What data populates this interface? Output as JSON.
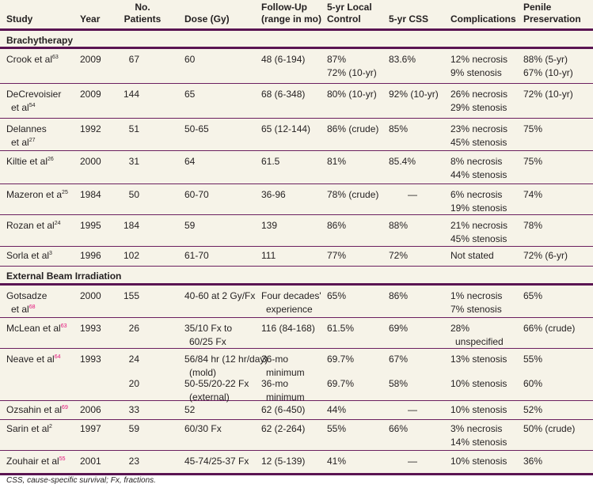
{
  "headers": {
    "study": "Study",
    "year": "Year",
    "patients_line1": "No.",
    "patients_line2": "Patients",
    "dose": "Dose (Gy)",
    "followup_line1": "Follow-Up",
    "followup_line2": "(range in mo)",
    "local_control_line1": "5-yr Local",
    "local_control_line2": "Control",
    "css": "5-yr CSS",
    "complications": "Complications",
    "penile_line1": "Penile",
    "penile_line2": "Preservation"
  },
  "sections": {
    "brachy": "Brachytherapy",
    "ebrt": "External Beam Irradiation"
  },
  "rows": [
    {
      "study1": "Crook et al",
      "ref": "63",
      "year": "2009",
      "patients": "67",
      "dose1": "60",
      "fu1": "48 (6-194)",
      "lc1": "87%",
      "lc2": "72% (10-yr)",
      "css": "83.6%",
      "comp1": "12% necrosis",
      "comp2": "9% stenosis",
      "pen1": "88% (5-yr)",
      "pen2": "67% (10-yr)"
    },
    {
      "study1": "DeCrevoisier",
      "study2": "et al",
      "ref": "54",
      "year": "2009",
      "patients": "144",
      "dose1": "65",
      "fu1": "68 (6-348)",
      "lc1": "80% (10-yr)",
      "css": "92% (10-yr)",
      "comp1": "26% necrosis",
      "comp2": "29% stenosis",
      "pen1": "72% (10-yr)"
    },
    {
      "study1": "Delannes",
      "study2": "et al",
      "ref": "27",
      "year": "1992",
      "patients": "51",
      "dose1": "50-65",
      "fu1": "65 (12-144)",
      "lc1": "86% (crude)",
      "css": "85%",
      "comp1": "23% necrosis",
      "comp2": "45% stenosis",
      "pen1": "75%"
    },
    {
      "study1": "Kiltie et al",
      "ref": "26",
      "year": "2000",
      "patients": "31",
      "dose1": "64",
      "fu1": "61.5",
      "lc1": "81%",
      "css": "85.4%",
      "comp1": "8% necrosis",
      "comp2": "44% stenosis",
      "pen1": "75%"
    },
    {
      "study1": "Mazeron et a",
      "ref": "25",
      "year": "1984",
      "patients": "50",
      "dose1": "60-70",
      "fu1": "36-96",
      "lc1": "78% (crude)",
      "css": "—",
      "comp1": "6% necrosis",
      "comp2": "19% stenosis",
      "pen1": "74%"
    },
    {
      "study1": "Rozan et al",
      "ref": "24",
      "year": "1995",
      "patients": "184",
      "dose1": "59",
      "fu1": "139",
      "lc1": "86%",
      "css": "88%",
      "comp1": "21% necrosis",
      "comp2": "45% stenosis",
      "pen1": "78%"
    },
    {
      "study1": "Sorla et al",
      "ref": "3",
      "year": "1996",
      "patients": "102",
      "dose1": "61-70",
      "fu1": "111",
      "lc1": "77%",
      "css": "72%",
      "comp1": "Not stated",
      "pen1": "72% (6-yr)"
    },
    {
      "study1": "Gotsadze",
      "study2": "et al",
      "ref": "68",
      "year": "2000",
      "patients": "155",
      "dose1": "40-60 at 2 Gy/Fx",
      "fu1": "Four decades'",
      "fu2": "experience",
      "lc1": "65%",
      "css": "86%",
      "comp1": "1% necrosis",
      "comp2": "7% stenosis",
      "pen1": "65%"
    },
    {
      "study1": "McLean et al",
      "ref": "63",
      "year": "1993",
      "patients": "26",
      "dose1": "35/10 Fx to",
      "dose2": "60/25 Fx",
      "fu1": "116 (84-168)",
      "lc1": "61.5%",
      "css": "69%",
      "comp1": "28%",
      "comp2": "unspecified",
      "pen1": "66% (crude)"
    },
    {
      "study1": "Neave et al",
      "ref": "64",
      "year": "1993",
      "patients": "24",
      "dose1": "56/84 hr (12 hr/day)",
      "dose2": "(mold)",
      "fu1": "36-mo",
      "fu2": "minimum",
      "lc1": "69.7%",
      "css": "67%",
      "comp1": "13% stenosis",
      "pen1": "55%",
      "sub": {
        "patients": "20",
        "dose1": "50-55/20-22 Fx",
        "dose2": "(external)",
        "fu1": "36-mo",
        "fu2": "minimum",
        "lc1": "69.7%",
        "css": "58%",
        "comp1": "10% stenosis",
        "pen1": "60%"
      }
    },
    {
      "study1": "Ozsahin et al",
      "ref": "69",
      "year": "2006",
      "patients": "33",
      "dose1": "52",
      "fu1": "62 (6-450)",
      "lc1": "44%",
      "css": "—",
      "comp1": "10% stenosis",
      "pen1": "52%"
    },
    {
      "study1": "Sarin et al",
      "ref": "2",
      "year": "1997",
      "patients": "59",
      "dose1": "60/30 Fx",
      "fu1": "62 (2-264)",
      "lc1": "55%",
      "css": "66%",
      "comp1": "3% necrosis",
      "comp2": "14% stenosis",
      "pen1": "50% (crude)"
    },
    {
      "study1": "Zouhair et al",
      "ref": "55",
      "year": "2001",
      "patients": "23",
      "dose1": "45-74/25-37 Fx",
      "fu1": "12 (5-139)",
      "lc1": "41%",
      "css": "—",
      "comp1": "10% stenosis",
      "pen1": "36%"
    }
  ],
  "footnote": "CSS, cause-specific survival; Fx, fractions.",
  "colors": {
    "background": "#f6f3e8",
    "rule": "#5a1452",
    "ref_link": "#e3137a",
    "text": "#231f20"
  }
}
